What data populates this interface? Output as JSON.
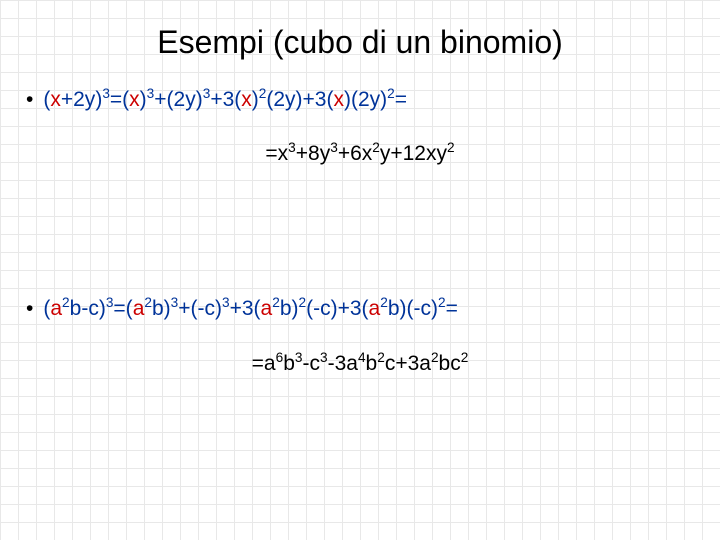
{
  "title": "Esempi (cubo di un binomio)",
  "colors": {
    "x": "#cc0000",
    "y": "#003399",
    "a": "#cc0000",
    "c": "#003399",
    "text": "#000000",
    "bg": "#ffffff",
    "grid": "#e8e8e8"
  },
  "example1": {
    "lhs_open": "(",
    "term1": "x",
    "plus": "+",
    "term2": "2y",
    "lhs_close": ")",
    "exp3": "3",
    "eq": "=",
    "rhs_part1_open": "(",
    "rhs_part1_x": "x",
    "rhs_part1_close": ")",
    "rhs_part2_plus": "+(",
    "rhs_part2_2y": "2y",
    "rhs_part2_close": ")",
    "rhs_part3_pre": "+3(",
    "rhs_part3_x": "x",
    "rhs_part3_close": ")",
    "exp2": "2",
    "rhs_part3b_open": "(",
    "rhs_part3b_2y": "2y",
    "rhs_part3b_close": ")+3(",
    "rhs_part4_x": "x",
    "rhs_part4_close": ")(",
    "rhs_part4_2y": "2y",
    "rhs_part4_end": ")",
    "final_eq": "=",
    "result_pre": "=x",
    "result_p1": "+8y",
    "result_p2": "+6x",
    "result_p3": "y+12xy"
  },
  "example2": {
    "lhs_open": "(",
    "a2": "a",
    "b": "b",
    "minus": "-",
    "cterm": "c",
    "lhs_close": ")",
    "eq": "=(",
    "rhs1_a": "a",
    "rhs1_b_close": "b)",
    "rhs2_pre": "+(-",
    "rhs2_c": "c",
    "rhs2_close": ")",
    "rhs3_pre": "+3(",
    "rhs3_a": "a",
    "rhs3_b_close": "b)",
    "rhs3b_open": "(-",
    "rhs3b_c": "c",
    "rhs3b_close": ")+3(",
    "rhs4_a": "a",
    "rhs4_b_close": "b)(-",
    "rhs4_c": "c",
    "rhs4_end": ")",
    "final_eq": "=",
    "result": "=a",
    "r_b": "b",
    "r_p1": "-c",
    "r_p2": "-3a",
    "r_p3": "b",
    "r_p4": "c+3a",
    "r_p5": "bc"
  },
  "sup2": "2",
  "sup3": "3",
  "sup4": "4",
  "sup6": "6"
}
